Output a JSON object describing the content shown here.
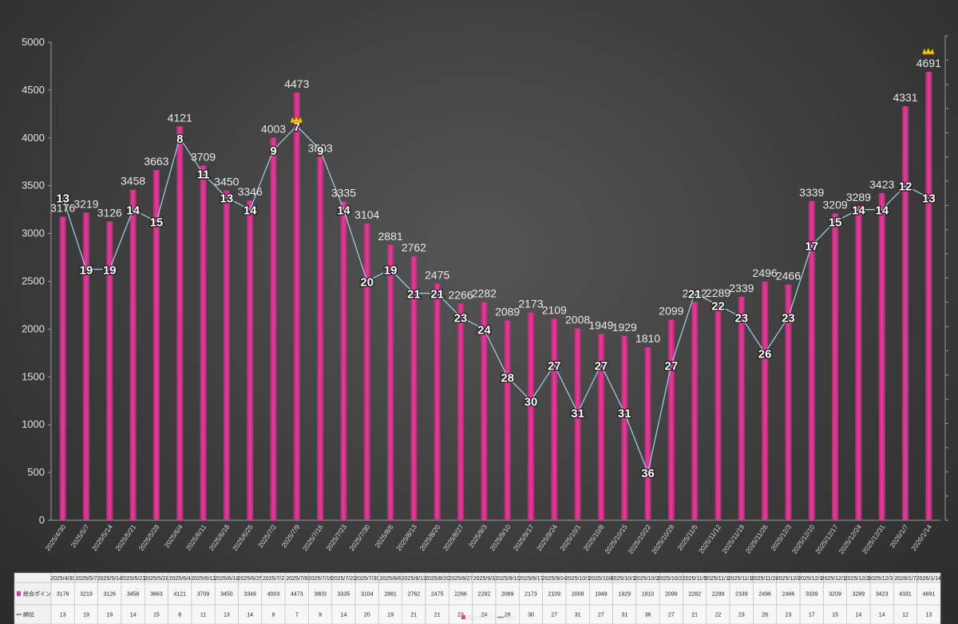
{
  "chart_data": {
    "type": "bar",
    "title": "",
    "xlabel": "",
    "ylabel": "",
    "ylim": [
      0,
      5000
    ],
    "yticks": [
      0,
      500,
      1000,
      1500,
      2000,
      2500,
      3000,
      3500,
      4000,
      4500,
      5000
    ],
    "categories": [
      "2025/4/30",
      "2025/5/7",
      "2025/5/14",
      "2025/5/21",
      "2025/5/28",
      "2025/6/4",
      "2025/6/11",
      "2025/6/18",
      "2025/6/25",
      "2025/7/2",
      "2025/7/9",
      "2025/7/16",
      "2025/7/23",
      "2025/7/30",
      "2025/8/6",
      "2025/8/13",
      "2025/8/20",
      "2025/8/27",
      "2025/9/3",
      "2025/9/10",
      "2025/9/17",
      "2025/9/24",
      "2025/10/1",
      "2025/10/8",
      "2025/10/15",
      "2025/10/22",
      "2025/10/29",
      "2025/11/5",
      "2025/11/12",
      "2025/11/19",
      "2025/11/26",
      "2025/12/3",
      "2025/12/10",
      "2025/12/17",
      "2025/12/24",
      "2025/12/31",
      "2026/1/7",
      "2026/1/14"
    ],
    "series": [
      {
        "name": "総合ポイント数",
        "kind": "bar",
        "color": "#e0409a",
        "values": [
          3176,
          3219,
          3126,
          3458,
          3663,
          4121,
          3709,
          3450,
          3346,
          4003,
          4473,
          3803,
          3335,
          3104,
          2881,
          2762,
          2475,
          2266,
          2282,
          2089,
          2173,
          2109,
          2008,
          1949,
          1929,
          1810,
          2099,
          2282,
          2289,
          2339,
          2496,
          2466,
          3339,
          3209,
          3289,
          3423,
          4331,
          4691
        ]
      },
      {
        "name": "順位",
        "kind": "line",
        "color": "#9fd3ec",
        "values": [
          13,
          19,
          19,
          14,
          15,
          8,
          11,
          13,
          14,
          9,
          7,
          9,
          14,
          20,
          19,
          21,
          21,
          23,
          24,
          28,
          30,
          27,
          31,
          27,
          31,
          36,
          27,
          21,
          22,
          23,
          26,
          23,
          17,
          15,
          14,
          14,
          12,
          13
        ]
      }
    ],
    "crown_indices": [
      10,
      37
    ],
    "legend_position": "bottom",
    "grid": false
  }
}
